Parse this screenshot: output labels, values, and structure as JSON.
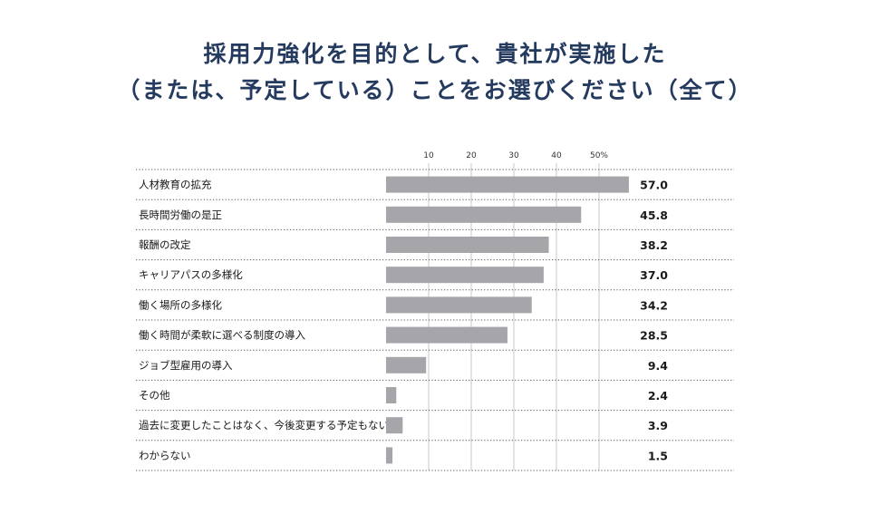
{
  "title_line1": "採用力強化を目的として、貴社が実施した",
  "title_line2": "（または、予定している）ことをお選びください（全て）",
  "chart_data": {
    "type": "bar",
    "orientation": "horizontal",
    "title": "採用力強化を目的として、貴社が実施した（または、予定している）ことをお選びください（全て）",
    "categories": [
      "人材教育の拡充",
      "長時間労働の是正",
      "報酬の改定",
      "キャリアパスの多様化",
      "働く場所の多様化",
      "働く時間が柔軟に選べる制度の導入",
      "ジョブ型雇用の導入",
      "その他",
      "過去に変更したことはなく、今後変更する予定もない",
      "わからない"
    ],
    "values": [
      57.0,
      45.8,
      38.2,
      37.0,
      34.2,
      28.5,
      9.4,
      2.4,
      3.9,
      1.5
    ],
    "value_labels": [
      "57.0",
      "45.8",
      "38.2",
      "37.0",
      "34.2",
      "28.5",
      "9.4",
      "2.4",
      "3.9",
      "1.5"
    ],
    "x_ticks": [
      {
        "value": 10,
        "label": "10"
      },
      {
        "value": 20,
        "label": "20"
      },
      {
        "value": 30,
        "label": "30"
      },
      {
        "value": 40,
        "label": "40"
      },
      {
        "value": 50,
        "label": "50%"
      }
    ],
    "xlim": [
      0,
      57
    ],
    "grid": true,
    "colors": {
      "bar": "#a5a5aa",
      "grid": "#bdbdbd",
      "title": "#243a5e"
    }
  }
}
